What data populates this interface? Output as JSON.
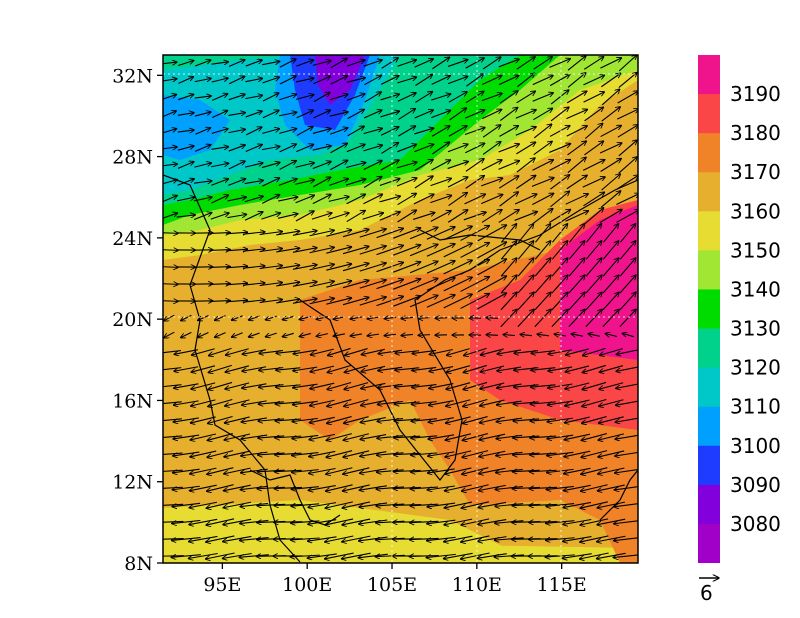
{
  "map": {
    "lon_range": [
      91.5,
      119.5
    ],
    "lat_range": [
      8,
      33
    ],
    "x_ticks": [
      {
        "value": 95,
        "label": "95E"
      },
      {
        "value": 100,
        "label": "100E"
      },
      {
        "value": 105,
        "label": "105E"
      },
      {
        "value": 110,
        "label": "110E"
      },
      {
        "value": 115,
        "label": "115E"
      }
    ],
    "y_ticks": [
      {
        "value": 8,
        "label": "8N"
      },
      {
        "value": 12,
        "label": "12N"
      },
      {
        "value": 16,
        "label": "16N"
      },
      {
        "value": 20,
        "label": "20N"
      },
      {
        "value": 24,
        "label": "24N"
      },
      {
        "value": 28,
        "label": "28N"
      },
      {
        "value": 32,
        "label": "32N"
      }
    ],
    "grid_lines": "dashed at 20N, 32N, 105E, 110E, 115E"
  },
  "colorbar": {
    "levels": [
      {
        "label": "3190",
        "color": "#f0148c"
      },
      {
        "label": "3180",
        "color": "#fa4646"
      },
      {
        "label": "3170",
        "color": "#f08228"
      },
      {
        "label": "3160",
        "color": "#e6af2d"
      },
      {
        "label": "3150",
        "color": "#e6dc32"
      },
      {
        "label": "3140",
        "color": "#a0e632"
      },
      {
        "label": "3130",
        "color": "#00dc00"
      },
      {
        "label": "3120",
        "color": "#00d28c"
      },
      {
        "label": "3110",
        "color": "#00c8c8"
      },
      {
        "label": "3100",
        "color": "#00a0ff"
      },
      {
        "label": "3090",
        "color": "#1e3cff"
      },
      {
        "label": "3080",
        "color": "#8200dc"
      }
    ],
    "bottom_color": "#a000c8"
  },
  "vector_reference": {
    "label": "6",
    "magnitude": 6
  }
}
